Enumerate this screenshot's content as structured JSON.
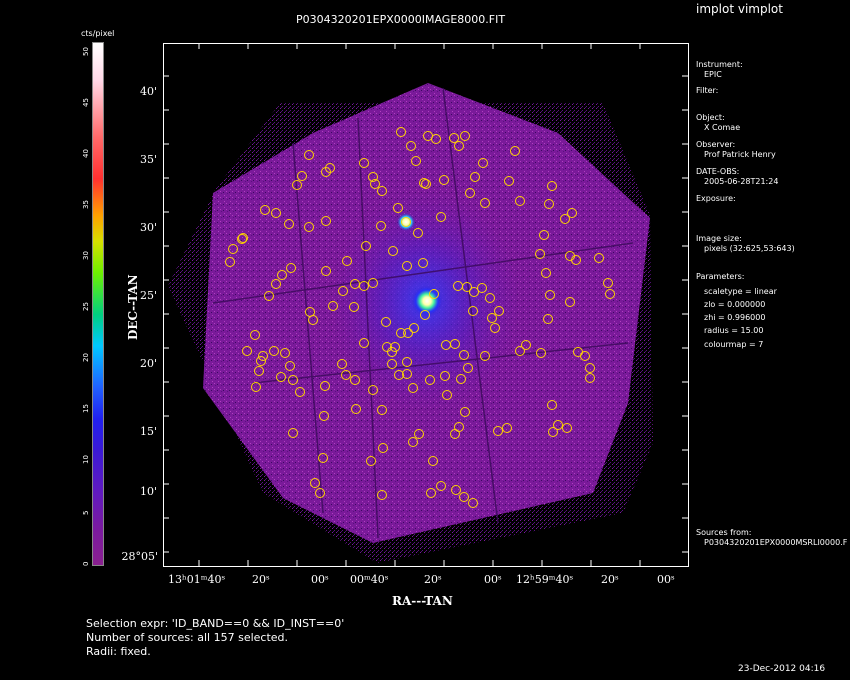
{
  "window": {
    "title": "P0304320201EPX0000IMAGE8000.FIT",
    "app_title": "implot vimplot"
  },
  "colorbar": {
    "unit_label": "cts/pixel",
    "ticks": [
      "50",
      "45",
      "40",
      "35",
      "30",
      "25",
      "20",
      "15",
      "10",
      "5",
      "0"
    ]
  },
  "axes": {
    "ylabel": "DEC--TAN",
    "xlabel": "RA---TAN",
    "y_ticks": [
      "40'",
      "35'",
      "30'",
      "25'",
      "20'",
      "15'",
      "10'",
      "28°05'"
    ],
    "x_ticks": [
      "13ʰ01ᵐ40ˢ",
      "20ˢ",
      "00ˢ",
      "00ᵐ40ˢ",
      "20ˢ",
      "00ˢ",
      "12ʰ59ᵐ40ˢ",
      "20ˢ",
      "00ˢ"
    ]
  },
  "info": {
    "instrument_label": "Instrument:",
    "instrument_value": "EPIC",
    "filter_label": "Filter:",
    "object_label": "Object:",
    "object_value": "X Comae",
    "observer_label": "Observer:",
    "observer_value": "Prof Patrick Henry",
    "date_label": "DATE-OBS:",
    "date_value": "2005-06-28T21:24",
    "exposure_label": "Exposure:",
    "image_size_label": "Image size:",
    "image_size_value": "pixels (32:625,53:643)",
    "parameters_label": "Parameters:",
    "scaletype": "scaletype = linear",
    "zlo": "zlo = 0.000000",
    "zhi": "zhi = 0.996000",
    "radius": "radius = 15.00",
    "colourmap": "colourmap = 7",
    "sources_from_label": "Sources from:",
    "sources_from_value": "P0304320201EPX0000MSRLI0000.F"
  },
  "footer": {
    "selection_expr": "Selection expr: 'ID_BAND==0 && ID_INST==0'",
    "num_sources": "Number of sources: all 157 selected.",
    "radii": "Radii: fixed.",
    "timestamp": "23-Dec-2012 04:16"
  },
  "colors": {
    "background": "#000000",
    "field": "#8a1aa0",
    "source_circle": "#ffd400"
  }
}
